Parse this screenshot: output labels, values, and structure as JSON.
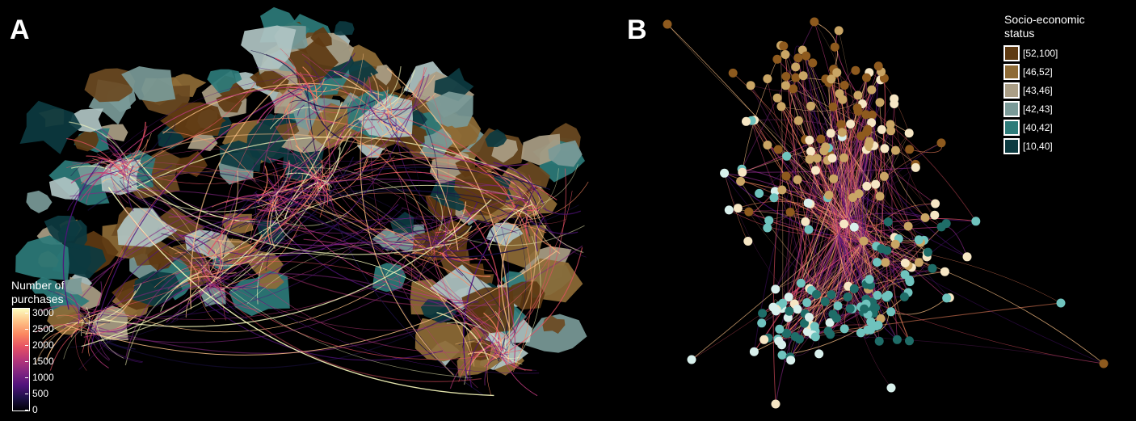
{
  "figure": {
    "panels": [
      {
        "label": "A"
      },
      {
        "label": "B"
      }
    ]
  },
  "purchases_legend": {
    "title_line1": "Number of",
    "title_line2": "purchases",
    "ticks": [
      "3000",
      "2500",
      "2000",
      "1500",
      "1000",
      "500",
      "0"
    ],
    "tick_values": [
      3000,
      2500,
      2000,
      1500,
      1000,
      500,
      0
    ],
    "range": [
      0,
      3000
    ],
    "gradient_colors": [
      "#fcfdbf",
      "#fec287",
      "#fb8861",
      "#e65164",
      "#b73779",
      "#822681",
      "#51127c",
      "#1d1147",
      "#000004"
    ]
  },
  "status_legend": {
    "title_line1": "Socio-economic",
    "title_line2": "status",
    "items": [
      {
        "label": "[52,100]",
        "color": "#5e3a12"
      },
      {
        "label": "[46,52]",
        "color": "#8e6b36"
      },
      {
        "label": "[43,46]",
        "color": "#aa9e86"
      },
      {
        "label": "[42,43]",
        "color": "#7a9a98"
      },
      {
        "label": "[40,42]",
        "color": "#2d7b79"
      },
      {
        "label": "[10,40]",
        "color": "#0c3a40"
      }
    ]
  },
  "node_colors": [
    "#8e5a1e",
    "#c9a565",
    "#f6e6c4",
    "#d8f0ec",
    "#6fc3be",
    "#1f6d68"
  ],
  "map_colors": [
    "#5e3a12",
    "#8e6b36",
    "#aa9e86",
    "#7a9a98",
    "#2d7b79",
    "#0c3a40",
    "#b0c4c3",
    "#6b4a22"
  ]
}
